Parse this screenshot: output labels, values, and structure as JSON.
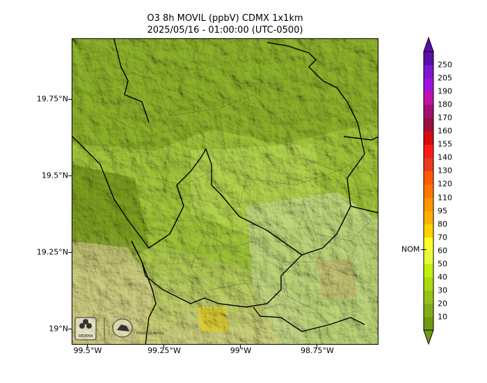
{
  "title": {
    "line1": "O3 8h MOVIL (ppbV) CDMX 1x1km",
    "line2": "2025/05/16 - 01:00:00 (UTC-0500)"
  },
  "map": {
    "lat_ticks": [
      "19.75°N",
      "19.5°N",
      "19.25°N",
      "19°N"
    ],
    "lon_ticks": [
      "99.5°W",
      "99.25°W",
      "99°W",
      "98.75°W"
    ],
    "lon_range": [
      -99.55,
      -98.55
    ],
    "lat_range": [
      18.95,
      19.95
    ],
    "logos": [
      "sedema-logo",
      "gobierno-cdmx-seal"
    ],
    "logo_text": "SEDEMA",
    "seal_text": "CIUDAD DE MÉXICO"
  },
  "colorbar": {
    "levels": [
      "10",
      "20",
      "30",
      "40",
      "50",
      "60",
      "70",
      "80",
      "95",
      "110",
      "120",
      "130",
      "140",
      "155",
      "160",
      "170",
      "180",
      "190",
      "205",
      "250"
    ],
    "colors": [
      "#6e9b12",
      "#7fae15",
      "#93c417",
      "#a9da10",
      "#c3ef0a",
      "#e2fb3e",
      "#ffff2a",
      "#ffd200",
      "#ffb000",
      "#ff9500",
      "#ff7700",
      "#ff5a00",
      "#ec3a1d",
      "#ff1a1a",
      "#d60a0a",
      "#9b0e44",
      "#a0106f",
      "#c011a8",
      "#a010e0",
      "#7a16d4",
      "#5a0fa6"
    ],
    "marker_label": "NOM",
    "marker_value": 65
  }
}
